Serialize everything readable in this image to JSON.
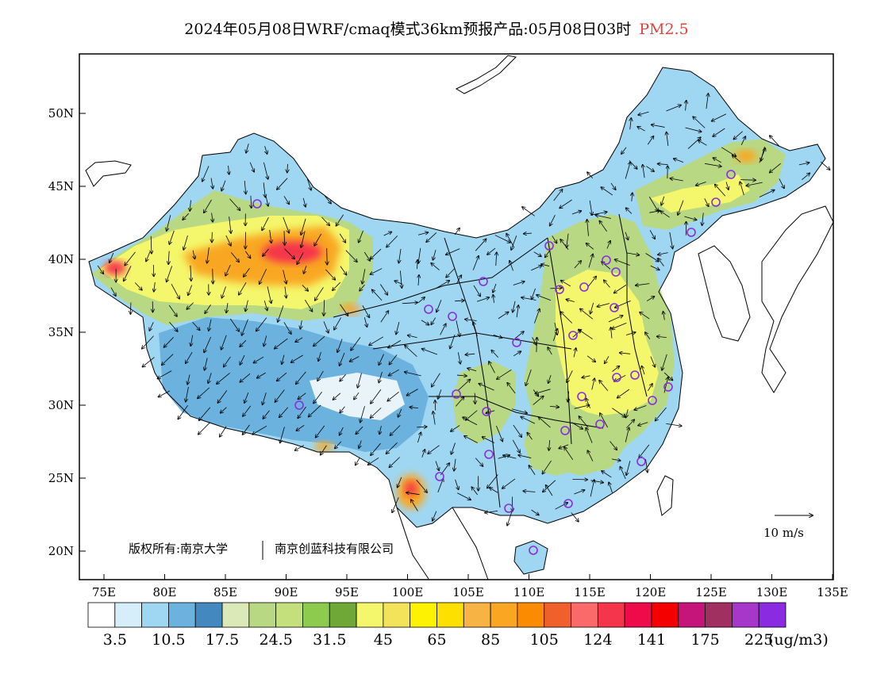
{
  "title": {
    "main": "2024年05月08日WRF/cmaq模式36km预报产品:05月08日03时",
    "variable": "PM2.5"
  },
  "axes": {
    "lat_labels": [
      "50N",
      "45N",
      "40N",
      "35N",
      "30N",
      "25N",
      "20N"
    ],
    "lon_labels": [
      "75E",
      "80E",
      "85E",
      "90E",
      "95E",
      "100E",
      "105E",
      "110E",
      "115E",
      "120E",
      "125E",
      "130E",
      "135E"
    ]
  },
  "copyright": {
    "text1": "版权所有:南京大学",
    "text2": "南京创蓝科技有限公司"
  },
  "wind_legend": {
    "label": "10 m/s"
  },
  "colorbar": {
    "unit": "(ug/m3)",
    "labels": [
      "3.5",
      "10.5",
      "17.5",
      "24.5",
      "31.5",
      "45",
      "65",
      "85",
      "105",
      "124",
      "141",
      "175",
      "225"
    ],
    "colors": [
      "#ffffff",
      "#d6eefa",
      "#9fd7f2",
      "#6cb2de",
      "#4389c0",
      "#dbe9b9",
      "#b8d884",
      "#c3e07c",
      "#8dcb4f",
      "#6fa836",
      "#f4f76b",
      "#f2e35a",
      "#fdf200",
      "#fde000",
      "#f7b444",
      "#f9a723",
      "#fb8b00",
      "#f0602b",
      "#fb6a6a",
      "#f5354c",
      "#ee0b4a",
      "#f50000",
      "#c5157a",
      "#a03060",
      "#a637c9",
      "#8a2be2"
    ]
  },
  "map_colors": {
    "low": "#9fd7f2",
    "lowmid": "#6cb2de",
    "green": "#b8d884",
    "yellow": "#f4f76b",
    "orange": "#f9a723",
    "red": "#f5354c",
    "station": "#8a2be2"
  }
}
